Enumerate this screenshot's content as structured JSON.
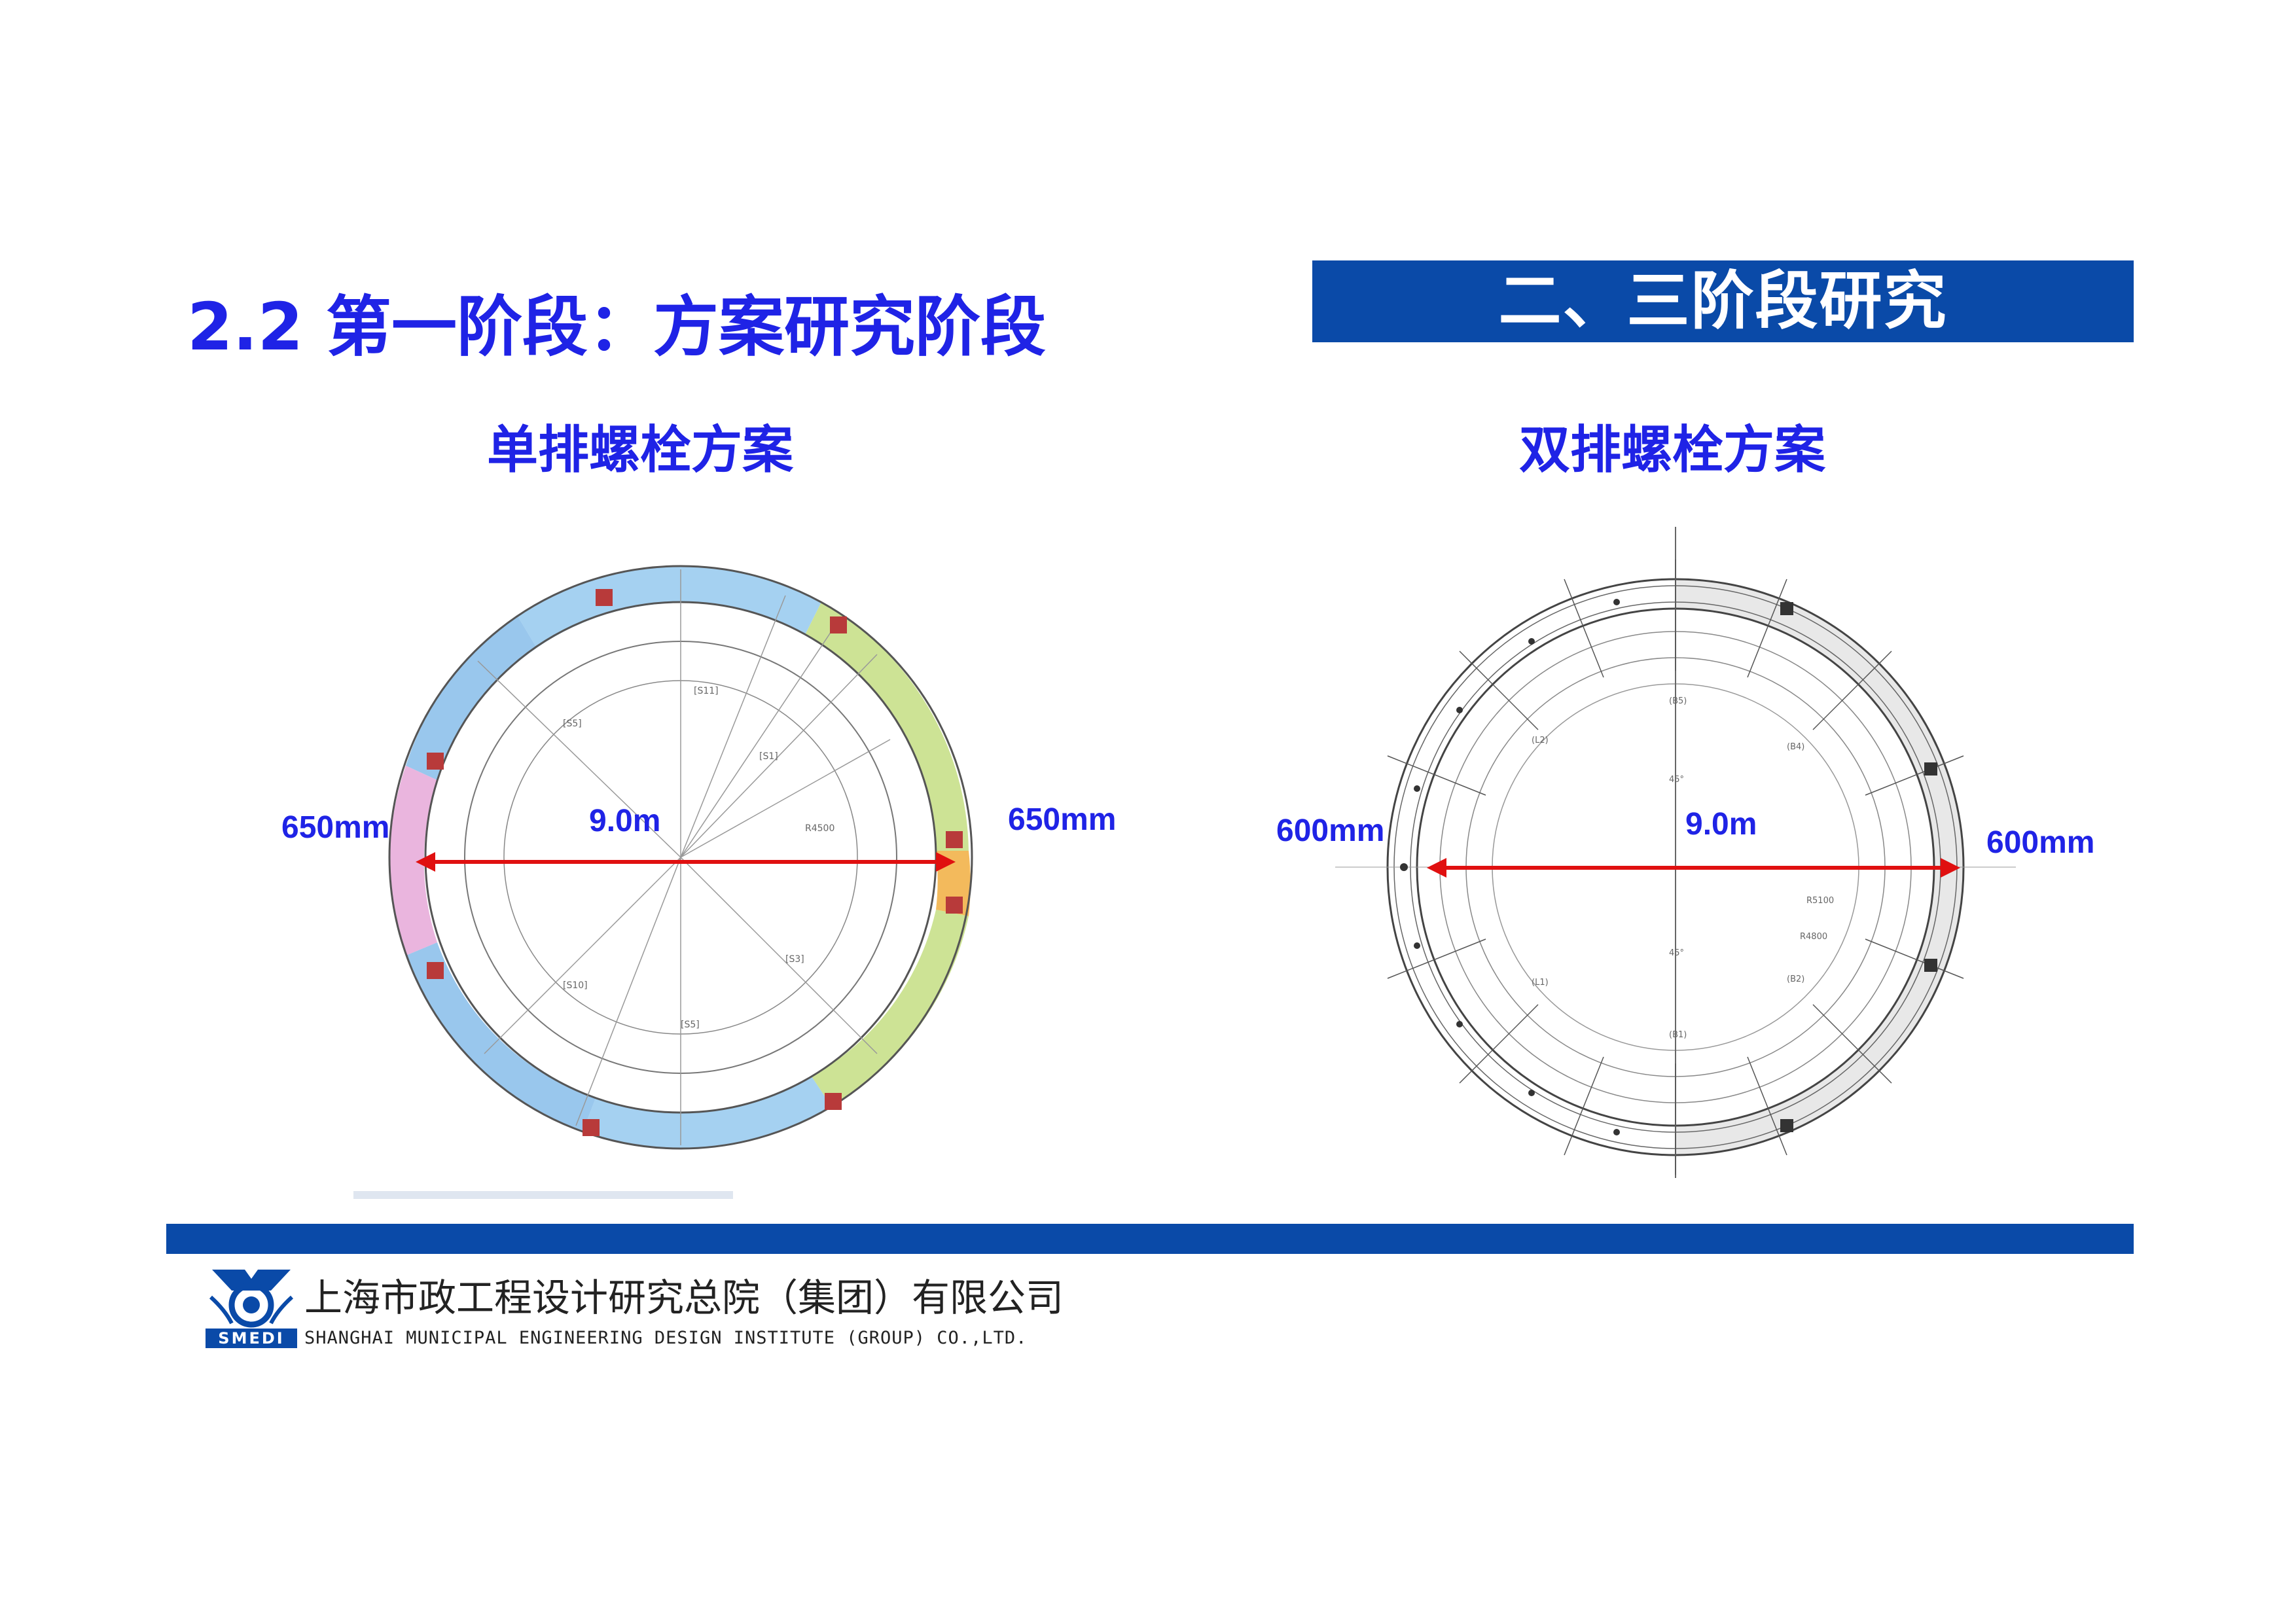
{
  "header": {
    "section_title": "二、三阶段研究",
    "slide_title": "2.2 第一阶段：方案研究阶段"
  },
  "left_panel": {
    "subtitle": "单排螺栓方案",
    "diameter": "9.0m",
    "left_thickness": "650mm",
    "right_thickness": "650mm"
  },
  "right_panel": {
    "subtitle": "双排螺栓方案",
    "diameter": "9.0m",
    "left_thickness": "600mm",
    "right_thickness": "600mm"
  },
  "footer": {
    "company_cn": "上海市政工程设计研究总院（集团）有限公司",
    "company_en": "SHANGHAI MUNICIPAL ENGINEERING DESIGN INSTITUTE (GROUP) CO.,LTD.",
    "logo_text": "SMEDI"
  },
  "colors": {
    "brand_blue": "#0a4aa8",
    "title_blue": "#1f23e6",
    "arrow_red": "#e01010"
  }
}
